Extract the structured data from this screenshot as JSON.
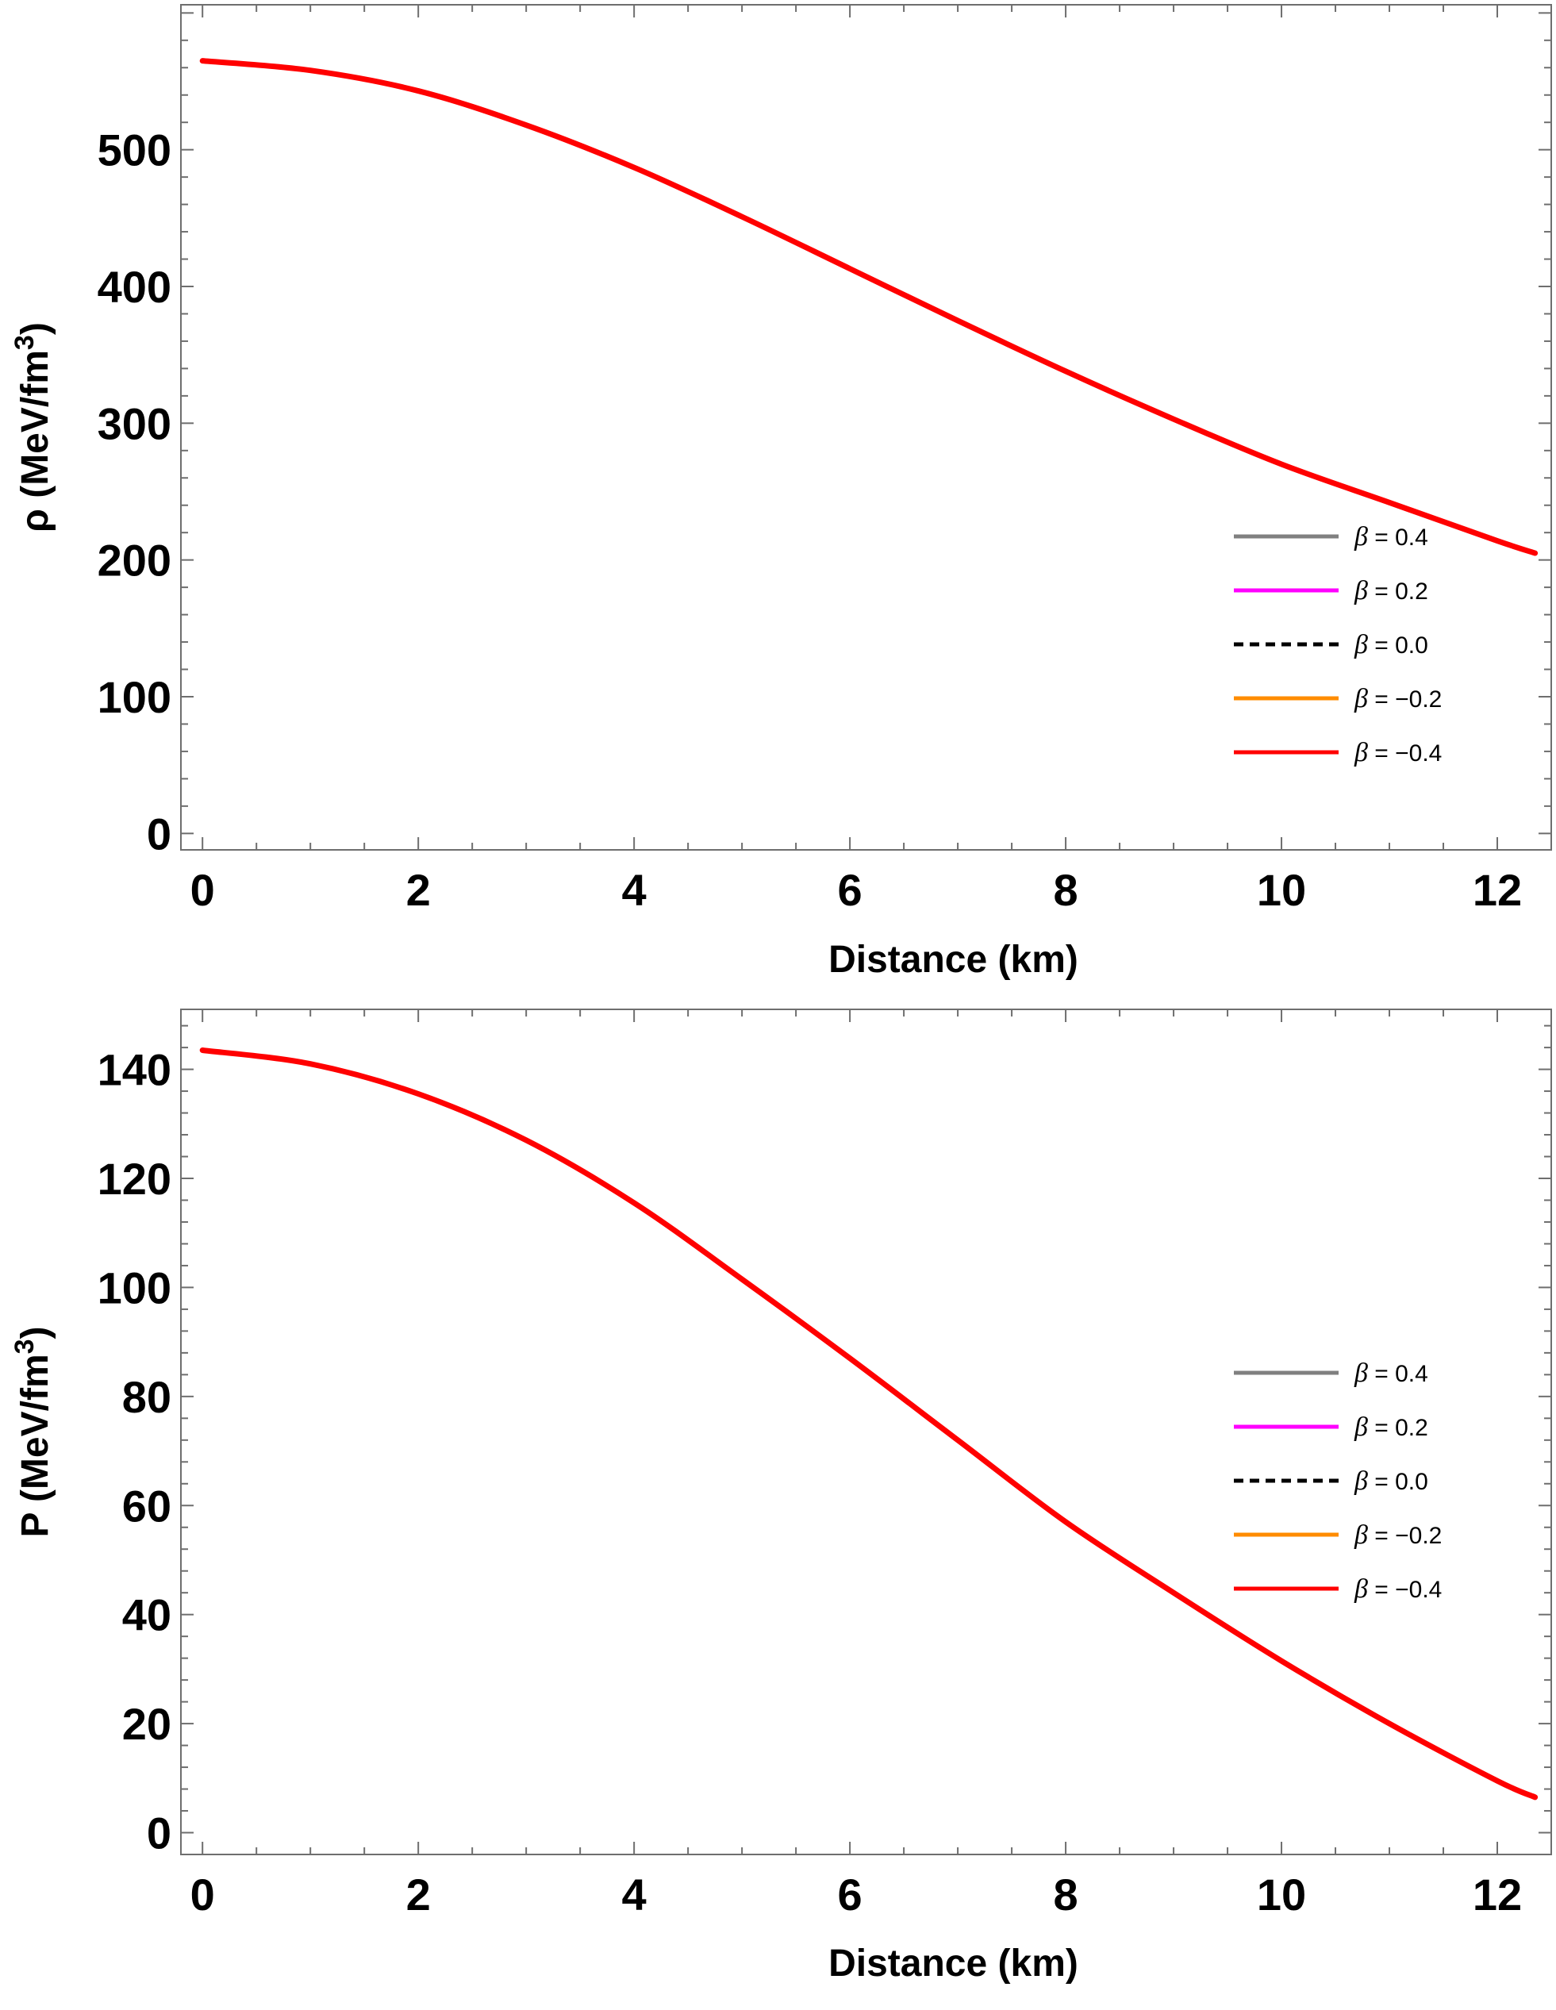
{
  "chart_data": [
    {
      "type": "line",
      "title": "",
      "xlabel": "Distance (km)",
      "ylabel_prefix": "ρ (MeV/fm",
      "ylabel_sup": "3",
      "ylabel_suffix": ")",
      "xlim": [
        -0.2,
        12.5
      ],
      "ylim": [
        -12,
        606
      ],
      "xticks": [
        0,
        2,
        4,
        6,
        8,
        10,
        12
      ],
      "yticks": [
        0,
        100,
        200,
        300,
        400,
        500
      ],
      "legend_position": "right",
      "grid": false,
      "x": [
        0,
        1,
        2,
        3,
        4,
        5,
        6,
        7,
        8,
        9,
        10,
        11,
        12,
        12.35
      ],
      "series": [
        {
          "name": "β = 0.4",
          "legend_symbol": "β",
          "legend_value": " = 0.4",
          "color": "#808080",
          "dashed": false,
          "values": [
            565,
            558,
            543,
            518,
            487,
            451,
            413,
            375,
            338,
            303,
            270,
            242,
            214,
            205
          ]
        },
        {
          "name": "β = 0.2",
          "legend_symbol": "β",
          "legend_value": " = 0.2",
          "color": "#ff00ff",
          "dashed": false,
          "values": [
            565,
            558,
            543,
            518,
            487,
            451,
            413,
            375,
            338,
            303,
            270,
            242,
            214,
            205
          ]
        },
        {
          "name": "β = 0.0",
          "legend_symbol": "β",
          "legend_value": " = 0.0",
          "color": "#000000",
          "dashed": true,
          "values": [
            565,
            558,
            543,
            518,
            487,
            451,
            413,
            375,
            338,
            303,
            270,
            242,
            214,
            205
          ]
        },
        {
          "name": "β = −0.2",
          "legend_symbol": "β",
          "legend_value": " = −0.2",
          "color": "#ff8c00",
          "dashed": false,
          "values": [
            565,
            558,
            543,
            518,
            487,
            451,
            413,
            375,
            338,
            303,
            270,
            242,
            214,
            205
          ]
        },
        {
          "name": "β = −0.4",
          "legend_symbol": "β",
          "legend_value": " = −0.4",
          "color": "#ff0000",
          "dashed": false,
          "values": [
            565,
            558,
            543,
            518,
            487,
            451,
            413,
            375,
            338,
            303,
            270,
            242,
            214,
            205
          ]
        }
      ]
    },
    {
      "type": "line",
      "title": "",
      "xlabel": "Distance (km)",
      "ylabel_prefix": "P (MeV/fm",
      "ylabel_sup": "3",
      "ylabel_suffix": ")",
      "xlim": [
        -0.2,
        12.5
      ],
      "ylim": [
        -4,
        151
      ],
      "xticks": [
        0,
        2,
        4,
        6,
        8,
        10,
        12
      ],
      "yticks": [
        0,
        20,
        40,
        60,
        80,
        100,
        120,
        140
      ],
      "legend_position": "right",
      "grid": false,
      "x": [
        0,
        1,
        2,
        3,
        4,
        5,
        6,
        7,
        8,
        9,
        10,
        11,
        12,
        12.35
      ],
      "series": [
        {
          "name": "β = 0.4",
          "legend_symbol": "β",
          "legend_value": " = 0.4",
          "color": "#808080",
          "dashed": false,
          "values": [
            143.5,
            141,
            135.5,
            127,
            115.5,
            101.5,
            87,
            72,
            57,
            44,
            31.5,
            20,
            9.5,
            6.5
          ]
        },
        {
          "name": "β = 0.2",
          "legend_symbol": "β",
          "legend_value": " = 0.2",
          "color": "#ff00ff",
          "dashed": false,
          "values": [
            143.5,
            141,
            135.5,
            127,
            115.5,
            101.5,
            87,
            72,
            57,
            44,
            31.5,
            20,
            9.5,
            6.5
          ]
        },
        {
          "name": "β = 0.0",
          "legend_symbol": "β",
          "legend_value": " = 0.0",
          "color": "#000000",
          "dashed": true,
          "values": [
            143.5,
            141,
            135.5,
            127,
            115.5,
            101.5,
            87,
            72,
            57,
            44,
            31.5,
            20,
            9.5,
            6.5
          ]
        },
        {
          "name": "β = −0.2",
          "legend_symbol": "β",
          "legend_value": " = −0.2",
          "color": "#ff8c00",
          "dashed": false,
          "values": [
            143.5,
            141,
            135.5,
            127,
            115.5,
            101.5,
            87,
            72,
            57,
            44,
            31.5,
            20,
            9.5,
            6.5
          ]
        },
        {
          "name": "β = −0.4",
          "legend_symbol": "β",
          "legend_value": " = −0.4",
          "color": "#ff0000",
          "dashed": false,
          "values": [
            143.5,
            141,
            135.5,
            127,
            115.5,
            101.5,
            87,
            72,
            57,
            44,
            31.5,
            20,
            9.5,
            6.5
          ]
        }
      ]
    }
  ]
}
